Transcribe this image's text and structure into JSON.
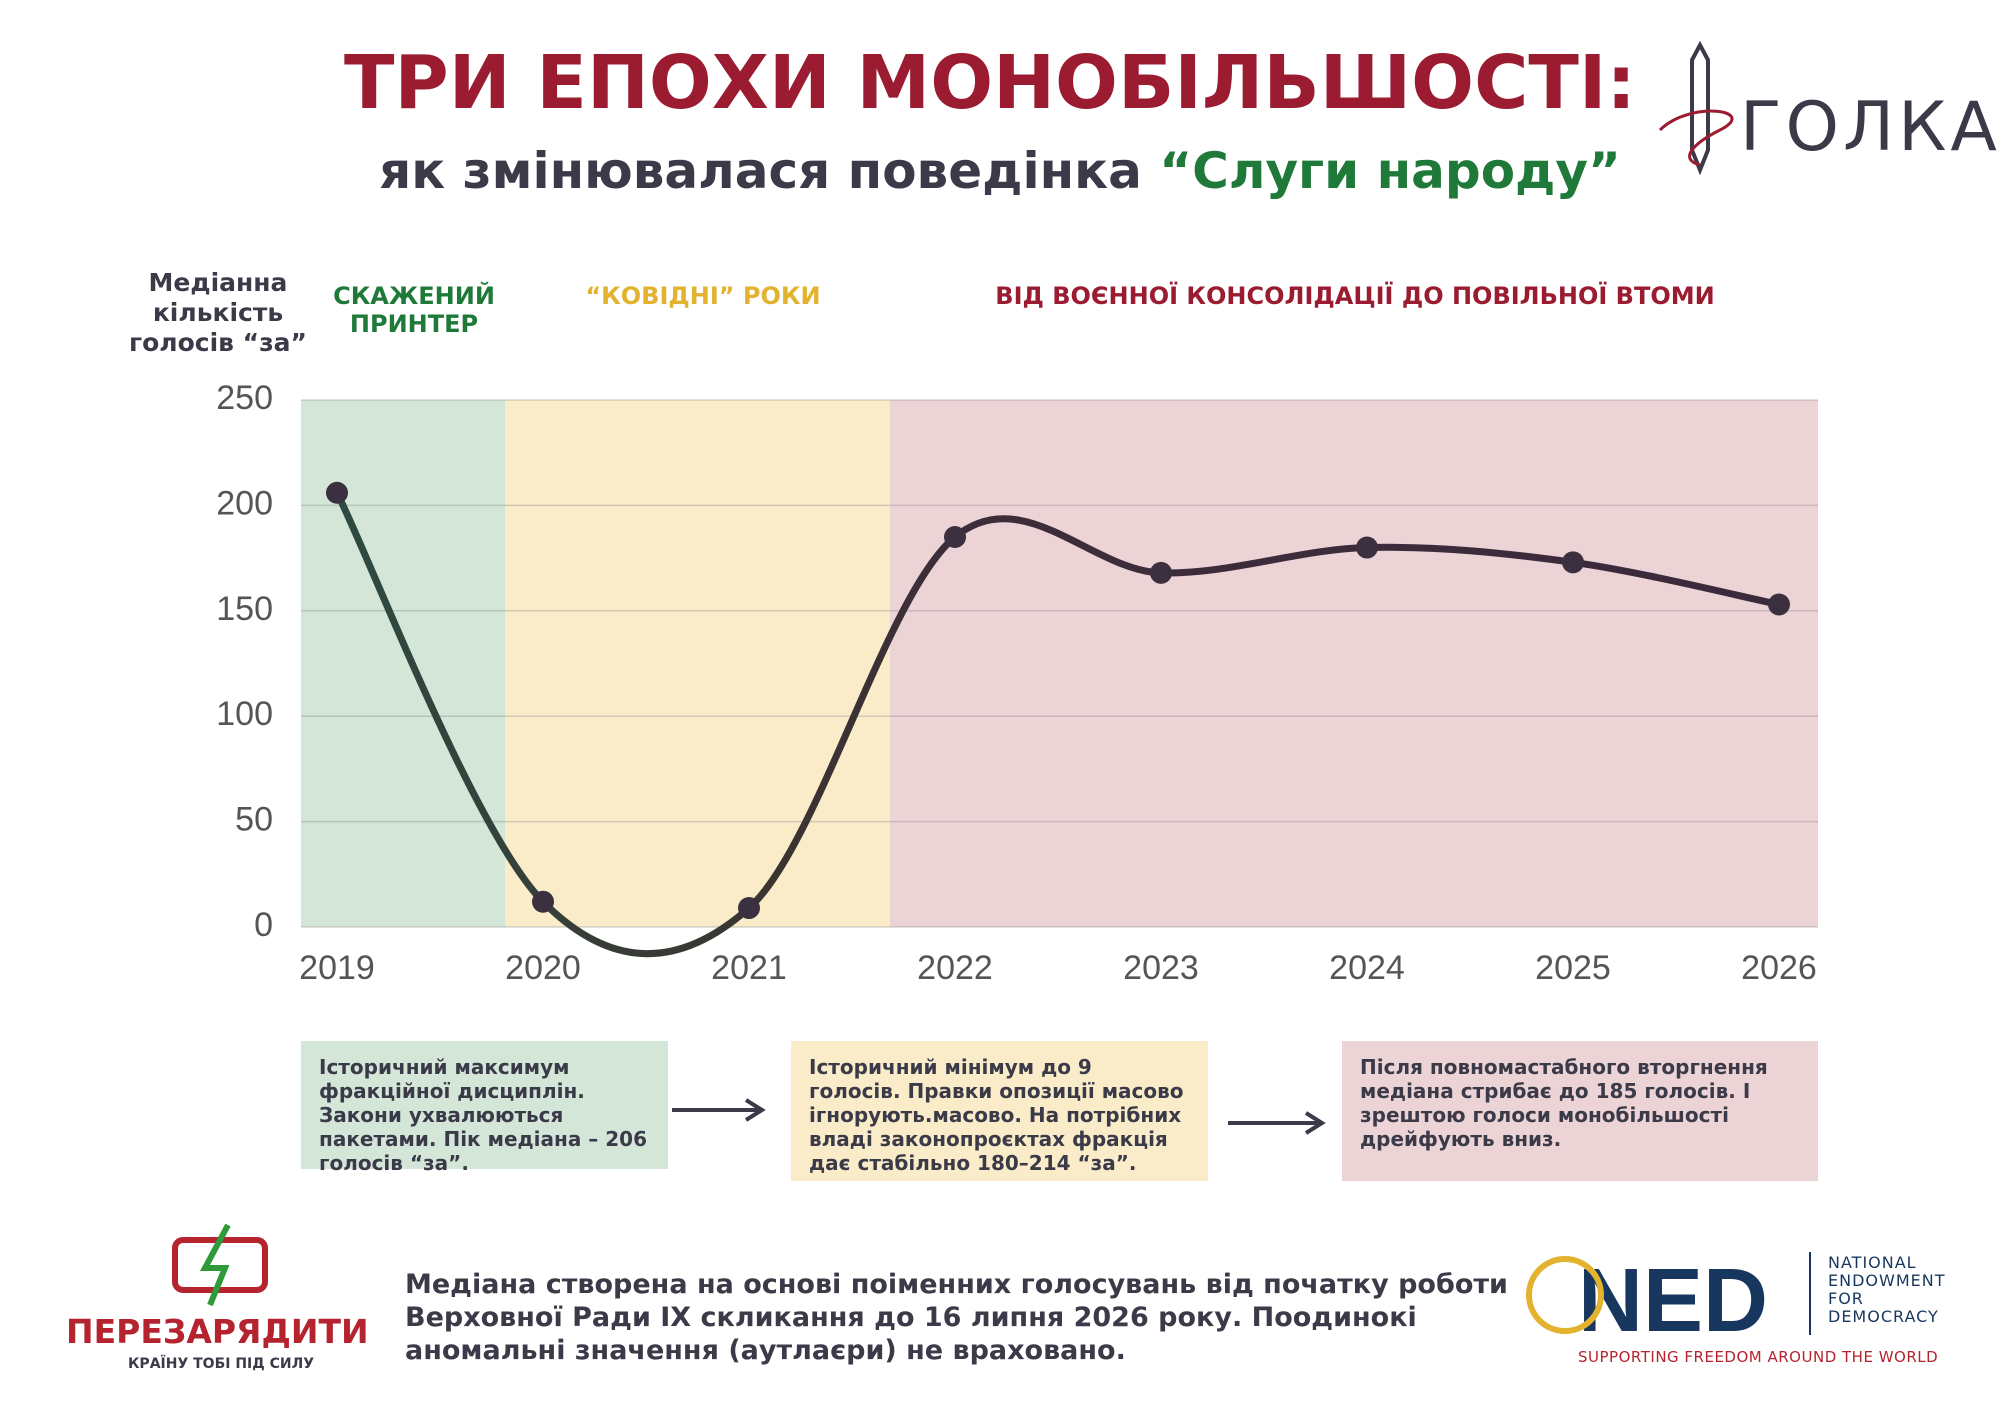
{
  "header": {
    "title": "ТРИ ЕПОХИ МОНОБІЛЬШОСТІ:",
    "subtitle": "як змінювалася поведінка",
    "subtitle_highlight": "“Слуги народу”"
  },
  "logos": {
    "golka": "ГОЛКА",
    "perezaryadyty": "ПЕРЕЗАРЯДИТИ",
    "perezaryadyty_tagline": "КРАЇНУ ТОБІ ПІД СИЛУ",
    "ned": "NED",
    "ned_name": "NATIONAL ENDOWMENT FOR DEMOCRACY",
    "ned_tagline": "SUPPORTING FREEDOM AROUND THE WORLD"
  },
  "chart_data": {
    "type": "line",
    "y_label": "Медіанна кількість голосів “за”",
    "eras": [
      "СКАЖЕНИЙ ПРИНТЕР",
      "“КОВІДНІ” РОКИ",
      "ВІД ВОЄННОЇ КОНСОЛІДАЦІЇ ДО ПОВІЛЬНОЇ ВТОМИ"
    ],
    "categories": [
      "2019",
      "2020",
      "2021",
      "2022",
      "2023",
      "2024",
      "2025",
      "2026"
    ],
    "values": [
      206,
      12,
      9,
      185,
      168,
      180,
      173,
      153
    ],
    "color": "#3b3040",
    "ylim": [
      0,
      250
    ],
    "yticks": [
      0,
      50,
      100,
      150,
      200,
      250
    ],
    "grid": true
  },
  "annotations": [
    "Історичний максимум фракційної дисциплін. Закони ухвалюються пакетами. Пік медіана – 206 голосів “за”.",
    "Історичний мінімум до 9 голосів. Правки опозиції масово ігнорують.масово. На потрібних владі законопроєктах фракція дає стабільно 180–214 “за”.",
    "Після повномастабного вторгнення медіана стрибає до 185 голосів. І зрештою голоси монобільшості дрейфують вниз."
  ],
  "footnote": "Медіана створена на основі поіменних голосувань від початку роботи Верховної Ради IX скликання до 16 липня 2026 року. Поодинокі аномальні значення (аутлаєри) не враховано."
}
